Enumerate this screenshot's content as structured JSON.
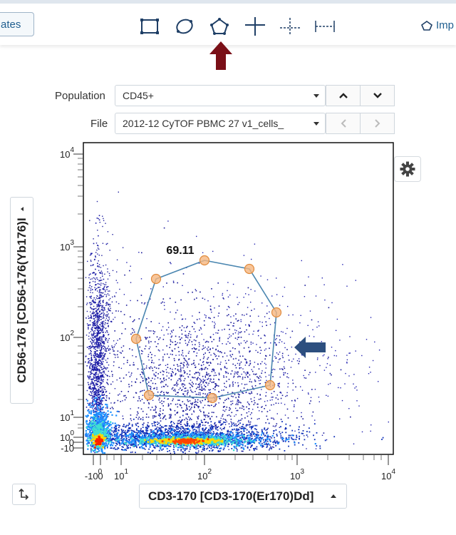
{
  "toolbar": {
    "left_button_label": "ates",
    "tools": [
      {
        "name": "rectangle-gate-tool",
        "icon": "rectangle-icon"
      },
      {
        "name": "ellipse-gate-tool",
        "icon": "ellipse-icon"
      },
      {
        "name": "polygon-gate-tool",
        "icon": "polygon-icon"
      },
      {
        "name": "quadrant-gate-tool",
        "icon": "quadrant-icon"
      },
      {
        "name": "split-quadrant-gate-tool",
        "icon": "split-quadrant-icon"
      },
      {
        "name": "range-gate-tool",
        "icon": "range-icon"
      }
    ],
    "import_label": "Imp"
  },
  "controls": {
    "population_label": "Population",
    "population_value": "CD45+",
    "file_label": "File",
    "file_value": "2012-12 CyTOF PBMC 27 v1_cells_"
  },
  "plot": {
    "gate_percent": "69.11",
    "x_axis_label": "CD3-170 [CD3-170(Er170)Dd]",
    "y_axis_label": "CD56-176 [CD56-176(Yb176)I",
    "x_ticks": [
      {
        "base": "-10",
        "exp": "0"
      },
      {
        "base": "0",
        "exp": ""
      },
      {
        "base": "10",
        "exp": "1"
      },
      {
        "base": "10",
        "exp": "2"
      },
      {
        "base": "10",
        "exp": "3"
      },
      {
        "base": "10",
        "exp": "4"
      }
    ],
    "y_ticks": [
      {
        "base": "-10",
        "exp": ""
      },
      {
        "base": "0",
        "exp": ""
      },
      {
        "base": "10",
        "exp": "0"
      },
      {
        "base": "10",
        "exp": "1"
      },
      {
        "base": "10",
        "exp": "2"
      },
      {
        "base": "10",
        "exp": "3"
      },
      {
        "base": "10",
        "exp": "4"
      }
    ]
  },
  "colors": {
    "accent_red": "#7a0f17",
    "accent_blue": "#2d4f7f",
    "gate_line": "#4a86b0",
    "gate_vertex": "#f6b67f"
  }
}
